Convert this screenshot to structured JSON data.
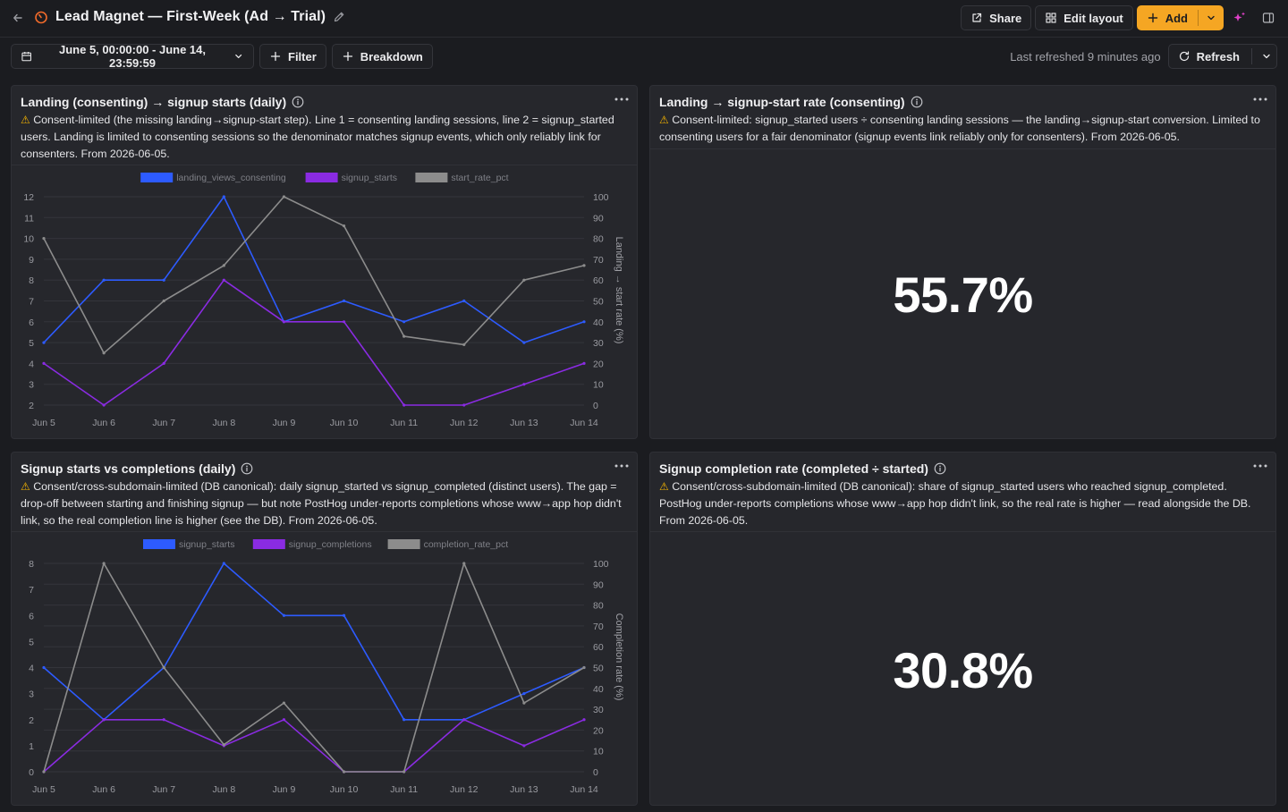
{
  "header": {
    "title": "Lead Magnet — First-Week (Ad → Trial)",
    "share_label": "Share",
    "edit_layout_label": "Edit layout",
    "add_label": "Add"
  },
  "toolbar": {
    "date_range": "June 5, 00:00:00 - June 14, 23:59:59",
    "filter_label": "Filter",
    "breakdown_label": "Breakdown",
    "last_refreshed": "Last refreshed 9 minutes ago",
    "refresh_label": "Refresh"
  },
  "colors": {
    "accent": "#f5a623",
    "series_blue": "#2d5bff",
    "series_purple": "#8a2be2",
    "series_gray": "#8c8c8c",
    "warning": "#f5b400"
  },
  "cards": [
    {
      "title": "Landing (consenting) → signup starts (daily)",
      "description": "Consent-limited (the missing landing→signup-start step). Line 1 = consenting landing sessions, line 2 = signup_started users. Landing is limited to consenting sessions so the denominator matches signup events, which only reliably link for consenters. From 2026-06-05."
    },
    {
      "title": "Landing → signup-start rate (consenting)",
      "description": "Consent-limited: signup_started users ÷ consenting landing sessions — the landing→signup-start conversion. Limited to consenting users for a fair denominator (signup events link reliably only for consenters). From 2026-06-05.",
      "value": "55.7%"
    },
    {
      "title": "Signup starts vs completions (daily)",
      "description": "Consent/cross-subdomain-limited (DB canonical): daily signup_started vs signup_completed (distinct users). The gap = drop-off between starting and finishing signup — but note PostHog under-reports completions whose www→app hop didn't link, so the real completion line is higher (see the DB). From 2026-06-05."
    },
    {
      "title": "Signup completion rate (completed ÷ started)",
      "description": "Consent/cross-subdomain-limited (DB canonical): share of signup_started users who reached signup_completed. PostHog under-reports completions whose www→app hop didn't link, so the real rate is higher — read alongside the DB. From 2026-06-05.",
      "value": "30.8%"
    }
  ],
  "chart_data": [
    {
      "type": "line",
      "categories": [
        "Jun 5",
        "Jun 6",
        "Jun 7",
        "Jun 8",
        "Jun 9",
        "Jun 10",
        "Jun 11",
        "Jun 12",
        "Jun 13",
        "Jun 14"
      ],
      "ylim": [
        2,
        12
      ],
      "y_ticks": [
        2,
        3,
        4,
        5,
        6,
        7,
        8,
        9,
        10,
        11,
        12
      ],
      "y2lim": [
        0,
        100
      ],
      "y2_ticks": [
        0,
        10,
        20,
        30,
        40,
        50,
        60,
        70,
        80,
        90,
        100
      ],
      "y2label": "Landing → start rate (%)",
      "legend": "top",
      "grid": true,
      "series": [
        {
          "name": "landing_views_consenting",
          "color": "#2d5bff",
          "axis": "left",
          "values": [
            5,
            8,
            8,
            12,
            6,
            7,
            6,
            7,
            5,
            6
          ]
        },
        {
          "name": "signup_starts",
          "color": "#8a2be2",
          "axis": "left",
          "values": [
            4,
            2,
            4,
            8,
            6,
            6,
            2,
            2,
            3,
            4
          ]
        },
        {
          "name": "start_rate_pct",
          "color": "#8c8c8c",
          "axis": "right",
          "values": [
            80,
            25,
            50,
            67,
            100,
            86,
            33,
            29,
            60,
            67
          ]
        }
      ]
    },
    {
      "type": "line",
      "categories": [
        "Jun 5",
        "Jun 6",
        "Jun 7",
        "Jun 8",
        "Jun 9",
        "Jun 10",
        "Jun 11",
        "Jun 12",
        "Jun 13",
        "Jun 14"
      ],
      "ylim": [
        0,
        8
      ],
      "y_ticks": [
        0,
        1,
        2,
        3,
        4,
        5,
        6,
        7,
        8
      ],
      "y2lim": [
        0,
        100
      ],
      "y2_ticks": [
        0,
        10,
        20,
        30,
        40,
        50,
        60,
        70,
        80,
        90,
        100
      ],
      "y2label": "Completion rate (%)",
      "legend": "top",
      "grid": true,
      "series": [
        {
          "name": "signup_starts",
          "color": "#2d5bff",
          "axis": "left",
          "values": [
            4,
            2,
            4,
            8,
            6,
            6,
            2,
            2,
            3,
            4
          ]
        },
        {
          "name": "signup_completions",
          "color": "#8a2be2",
          "axis": "left",
          "values": [
            0,
            2,
            2,
            1,
            2,
            0,
            0,
            2,
            1,
            2
          ]
        },
        {
          "name": "completion_rate_pct",
          "color": "#8c8c8c",
          "axis": "right",
          "values": [
            0,
            100,
            50,
            13,
            33,
            0,
            0,
            100,
            33,
            50
          ]
        }
      ]
    }
  ]
}
